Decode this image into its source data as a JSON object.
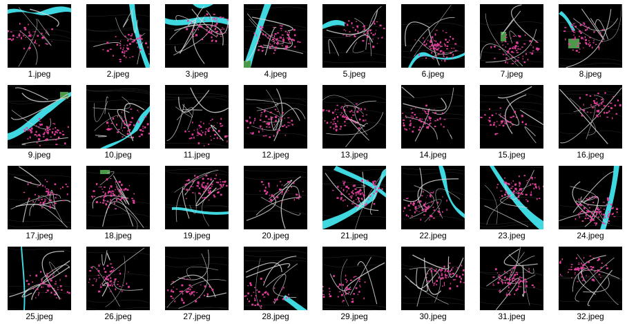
{
  "explorer": {
    "items": [
      {
        "label": "1.jpeg"
      },
      {
        "label": "2.jpeg"
      },
      {
        "label": "3.jpeg"
      },
      {
        "label": "4.jpeg"
      },
      {
        "label": "5.jpeg"
      },
      {
        "label": "6.jpeg"
      },
      {
        "label": "7.jpeg"
      },
      {
        "label": "8.jpeg"
      },
      {
        "label": "9.jpeg"
      },
      {
        "label": "10.jpeg"
      },
      {
        "label": "11.jpeg"
      },
      {
        "label": "12.jpeg"
      },
      {
        "label": "13.jpeg"
      },
      {
        "label": "14.jpeg"
      },
      {
        "label": "15.jpeg"
      },
      {
        "label": "16.jpeg"
      },
      {
        "label": "17.jpeg"
      },
      {
        "label": "18.jpeg"
      },
      {
        "label": "19.jpeg"
      },
      {
        "label": "20.jpeg"
      },
      {
        "label": "21.jpeg"
      },
      {
        "label": "22.jpeg"
      },
      {
        "label": "23.jpeg"
      },
      {
        "label": "24.jpeg"
      },
      {
        "label": "25.jpeg"
      },
      {
        "label": "26.jpeg"
      },
      {
        "label": "27.jpeg"
      },
      {
        "label": "28.jpeg"
      },
      {
        "label": "29.jpeg"
      },
      {
        "label": "30.jpeg"
      },
      {
        "label": "31.jpeg"
      },
      {
        "label": "32.jpeg"
      }
    ]
  },
  "colors": {
    "background": "#000000",
    "water": "#40d8e0",
    "buildings": "#e0409a",
    "roads": "#d8d8d8",
    "park": "#4a9a4a"
  }
}
